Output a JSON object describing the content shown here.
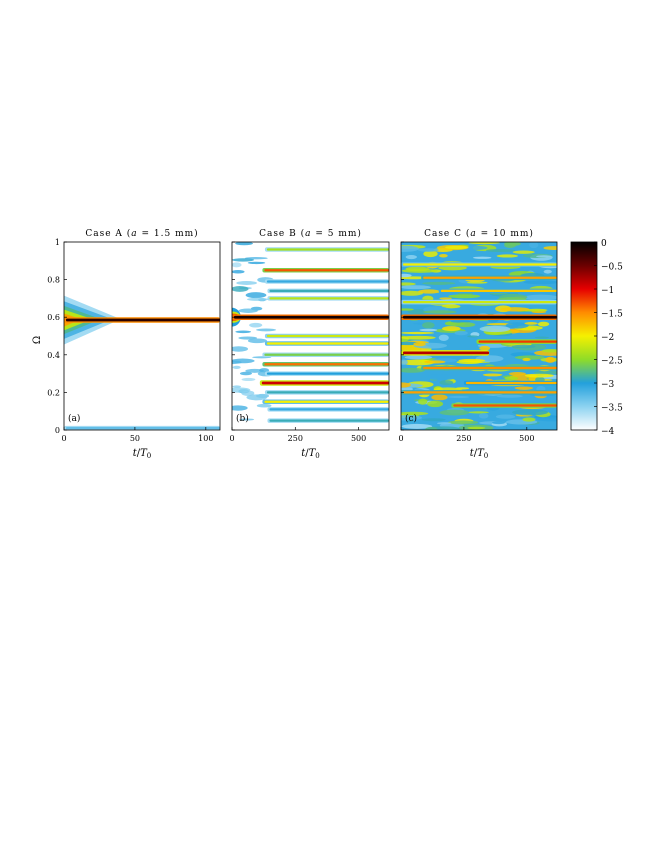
{
  "chart_data": [
    {
      "type": "heatmap",
      "title": "Case A (a = 1.5 mm)",
      "title_parts": [
        "Case A (",
        "a",
        " = 1.5 mm)"
      ],
      "xlabel": "t/T0",
      "xlabel_parts": [
        "t",
        "/",
        "T",
        "0"
      ],
      "ylabel": "Ω",
      "panel_label": "(a)",
      "xlim": [
        0,
        110
      ],
      "ylim": [
        0,
        1
      ],
      "xticks": [
        0,
        50,
        100
      ],
      "yticks": [
        0,
        0.2,
        0.4,
        0.6,
        0.8,
        1
      ],
      "bands": [
        {
          "omega": 0.585,
          "level": -0.2,
          "t_start": 0,
          "t_end": 110
        },
        {
          "omega": 0.01,
          "level": -3.3,
          "t_start": 0,
          "t_end": 110
        }
      ]
    },
    {
      "type": "heatmap",
      "title": "Case B (a = 5 mm)",
      "title_parts": [
        "Case B (",
        "a",
        " = 5 mm)"
      ],
      "xlabel": "t/T0",
      "xlabel_parts": [
        "t",
        "/",
        "T",
        "0"
      ],
      "panel_label": "(b)",
      "xlim": [
        0,
        620
      ],
      "ylim": [
        0,
        1
      ],
      "xticks": [
        0,
        250,
        500
      ],
      "bands": [
        {
          "omega": 0.6,
          "level": -0.1,
          "t_start": 0,
          "t_end": 620
        },
        {
          "omega": 0.96,
          "level": -2.4,
          "t_start": 130,
          "t_end": 620
        },
        {
          "omega": 0.85,
          "level": -1.3,
          "t_start": 120,
          "t_end": 620
        },
        {
          "omega": 0.79,
          "level": -3.1,
          "t_start": 130,
          "t_end": 620
        },
        {
          "omega": 0.74,
          "level": -2.9,
          "t_start": 140,
          "t_end": 620
        },
        {
          "omega": 0.7,
          "level": -2.3,
          "t_start": 140,
          "t_end": 620
        },
        {
          "omega": 0.5,
          "level": -2.2,
          "t_start": 130,
          "t_end": 620
        },
        {
          "omega": 0.46,
          "level": -2.0,
          "t_start": 130,
          "t_end": 620
        },
        {
          "omega": 0.4,
          "level": -2.6,
          "t_start": 120,
          "t_end": 620
        },
        {
          "omega": 0.35,
          "level": -1.4,
          "t_start": 120,
          "t_end": 620
        },
        {
          "omega": 0.3,
          "level": -3.0,
          "t_start": 130,
          "t_end": 620
        },
        {
          "omega": 0.25,
          "level": -0.9,
          "t_start": 110,
          "t_end": 620
        },
        {
          "omega": 0.2,
          "level": -2.9,
          "t_start": 130,
          "t_end": 620
        },
        {
          "omega": 0.15,
          "level": -2.0,
          "t_start": 120,
          "t_end": 620
        },
        {
          "omega": 0.11,
          "level": -3.1,
          "t_start": 140,
          "t_end": 620
        },
        {
          "omega": 0.05,
          "level": -2.9,
          "t_start": 140,
          "t_end": 620
        }
      ]
    },
    {
      "type": "heatmap",
      "title": "Case C (a = 10 mm)",
      "title_parts": [
        "Case C (",
        "a",
        " = 10 mm)"
      ],
      "xlabel": "t/T0",
      "xlabel_parts": [
        "t",
        "/",
        "T",
        "0"
      ],
      "panel_label": "(c)",
      "xlim": [
        0,
        620
      ],
      "ylim": [
        0,
        1
      ],
      "xticks": [
        0,
        250,
        500
      ],
      "bands": [
        {
          "omega": 0.6,
          "level": -0.1,
          "t_start": 0,
          "t_end": 620
        },
        {
          "omega": 0.88,
          "level": -2.0,
          "t_start": 0,
          "t_end": 620
        },
        {
          "omega": 0.81,
          "level": -1.6,
          "t_start": 80,
          "t_end": 620
        },
        {
          "omega": 0.74,
          "level": -1.8,
          "t_start": 150,
          "t_end": 620
        },
        {
          "omega": 0.68,
          "level": -2.2,
          "t_start": 0,
          "t_end": 620
        },
        {
          "omega": 0.47,
          "level": -1.2,
          "t_start": 300,
          "t_end": 620
        },
        {
          "omega": 0.41,
          "level": -0.8,
          "t_start": 0,
          "t_end": 350
        },
        {
          "omega": 0.33,
          "level": -1.5,
          "t_start": 80,
          "t_end": 620
        },
        {
          "omega": 0.25,
          "level": -1.7,
          "t_start": 250,
          "t_end": 620
        },
        {
          "omega": 0.2,
          "level": -1.6,
          "t_start": 0,
          "t_end": 620
        },
        {
          "omega": 0.13,
          "level": -1.3,
          "t_start": 200,
          "t_end": 620
        }
      ]
    }
  ],
  "colorbar": {
    "min": -4,
    "max": 0,
    "ticks": [
      0,
      -0.5,
      -1,
      -1.5,
      -2,
      -2.5,
      -3,
      -3.5,
      -4
    ],
    "tick_labels": [
      "0",
      "−0.5",
      "−1",
      "−1.5",
      "−2",
      "−2.5",
      "−3",
      "−3.5",
      "−4"
    ],
    "colormap": [
      {
        "level": 0.0,
        "color": "#000000"
      },
      {
        "level": -0.5,
        "color": "#6b0000"
      },
      {
        "level": -1.0,
        "color": "#e60000"
      },
      {
        "level": -1.5,
        "color": "#ff8c00"
      },
      {
        "level": -2.0,
        "color": "#f5f000"
      },
      {
        "level": -2.5,
        "color": "#8fdc28"
      },
      {
        "level": -3.0,
        "color": "#23a0dc"
      },
      {
        "level": -3.5,
        "color": "#8cd2f0"
      },
      {
        "level": -4.0,
        "color": "#ffffff"
      }
    ]
  }
}
